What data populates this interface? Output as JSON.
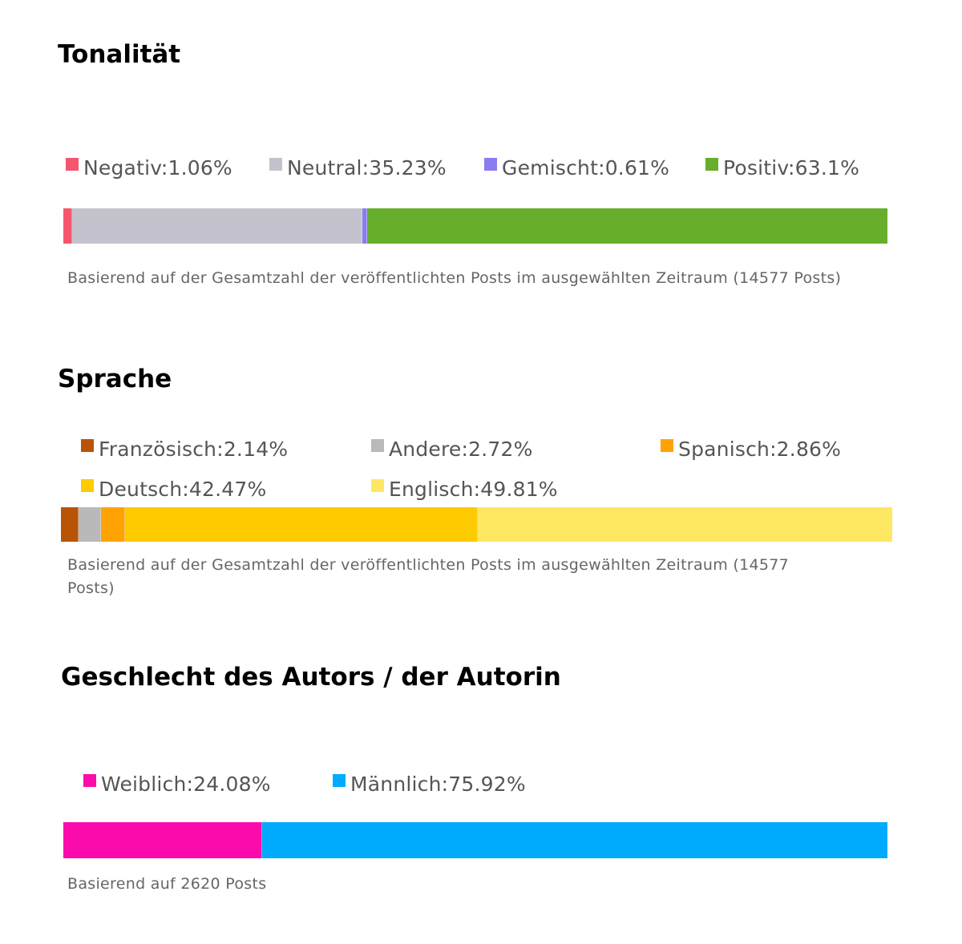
{
  "chart_data": [
    {
      "type": "bar",
      "orientation": "horizontal-stacked-100",
      "title": "Tonalität",
      "series": [
        {
          "name": "Negativ",
          "label": "Negativ:1.06%",
          "value": 1.06,
          "color": "#f5566e"
        },
        {
          "name": "Neutral",
          "label": "Neutral:35.23%",
          "value": 35.23,
          "color": "#c4c2cc"
        },
        {
          "name": "Gemischt",
          "label": "Gemischt:0.61%",
          "value": 0.61,
          "color": "#8a7df0"
        },
        {
          "name": "Positiv",
          "label": "Positiv:63.1%",
          "value": 63.1,
          "color": "#66ae2c"
        }
      ],
      "legend_position": "top",
      "note": "Basierend auf der Gesamtzahl der veröffentlichten Posts im ausgewählten Zeitraum (14577 Posts)"
    },
    {
      "type": "bar",
      "orientation": "horizontal-stacked-100",
      "title": "Sprache",
      "series": [
        {
          "name": "Französisch",
          "label": "Französisch:2.14%",
          "value": 2.14,
          "color": "#b95406"
        },
        {
          "name": "Andere",
          "label": "Andere:2.72%",
          "value": 2.72,
          "color": "#b9b9b9"
        },
        {
          "name": "Spanisch",
          "label": "Spanisch:2.86%",
          "value": 2.86,
          "color": "#ffa305"
        },
        {
          "name": "Deutsch",
          "label": "Deutsch:42.47%",
          "value": 42.47,
          "color": "#fecb00"
        },
        {
          "name": "Englisch",
          "label": "Englisch:49.81%",
          "value": 49.81,
          "color": "#fee862"
        }
      ],
      "legend_position": "top",
      "note_line1": "Basierend auf der Gesamtzahl der veröffentlichten Posts im ausgewählten Zeitraum (14577",
      "note_line2": "Posts)"
    },
    {
      "type": "bar",
      "orientation": "horizontal-stacked-100",
      "title": "Geschlecht des Autors / der Autorin",
      "series": [
        {
          "name": "Weiblich",
          "label": "Weiblich:24.08%",
          "value": 24.08,
          "color": "#fc0bac"
        },
        {
          "name": "Männlich",
          "label": "Männlich:75.92%",
          "value": 75.92,
          "color": "#00abfd"
        }
      ],
      "legend_position": "top",
      "note": "Basierend auf 2620 Posts"
    }
  ]
}
